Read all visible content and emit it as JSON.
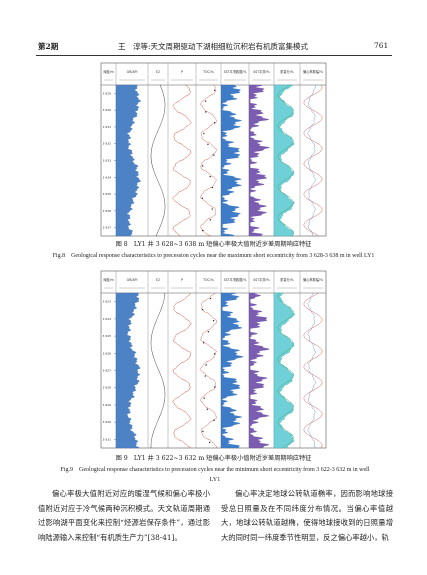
{
  "header": {
    "left": "第2期",
    "center": "王　淳等:天文周期驱动下湖相细粒沉积岩有机质富集模式",
    "right": "761"
  },
  "figures": [
    {
      "columns": [
        "深度/m",
        "GR/API",
        "E2",
        "P",
        "TOC/%",
        "SST平滑数据/%",
        "SST平滑/%",
        "质量分/%",
        "偏心率振幅/%"
      ],
      "depths": [
        "3 629",
        "3 630",
        "3 631",
        "3 632",
        "3 633",
        "3 634",
        "3 635",
        "3 636",
        "3 637"
      ],
      "caption_cn": "图 8　LY1 井 3 628~3 638 m 短偏心率极大值附近岁差周期响应特征",
      "caption_en": "Fig.8　Geological response characteristics to precession cycles near the maximum short eccentricity from 3 628-3 638 m in well LY1"
    },
    {
      "columns": [
        "深度/m",
        "GR/API",
        "E2",
        "P",
        "TOC/%",
        "SST平滑数据/%",
        "SST平滑/%",
        "质量分/%",
        "偏心率振幅/%"
      ],
      "depths": [
        "3 623",
        "3 624",
        "3 625",
        "3 626",
        "3 627",
        "3 628",
        "3 629",
        "3 630",
        "3 631"
      ],
      "caption_cn": "图 9　LY1 井 3 622~3 632 m 短偏心率极小值附近岁差周期响应特征",
      "caption_en": "Fig.9　Geological response characteristics to precession cycles near the minimum short eccentricity from 3 622-3 632 m in well LY1"
    }
  ],
  "body": {
    "left": "偏心率极大值附近对应的暖湿气候和偏心率极小值附近对应于冷气候两种沉积模式。天文轨道周期通过影响湖平面变化来控制“烃源岩保存条件”，通过影响陆源输入来控制“有机质生产力”[38-41]。",
    "right": "偏心率决定地球公转轨道椭率，因而影响地球接受总日照量及在不同纬度分布情况。当偏心率值越大，地球公转轨道越椭，使得地球接收到的日照量增大的同时同一纬度季节性明显，反之偏心率越小，轨"
  }
}
